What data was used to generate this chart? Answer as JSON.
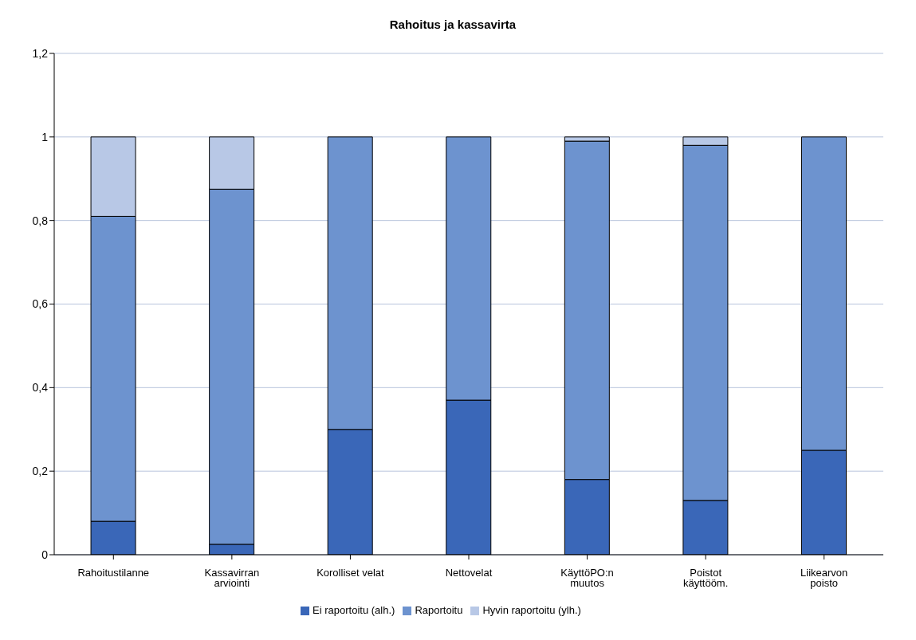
{
  "chart_data": {
    "type": "bar",
    "title": "Rahoitus ja kassavirta",
    "stacked": true,
    "categories": [
      "Rahoitustilanne",
      "Kassavirran arviointi",
      "Korolliset velat",
      "Nettovelat",
      "KäyttöPO:n muutos",
      "Poistot käyttööm.",
      "Liikearvon poisto"
    ],
    "series": [
      {
        "name": "Ei raportoitu (alh.)",
        "color": "#3a67b8",
        "values": [
          0.08,
          0.025,
          0.3,
          0.37,
          0.18,
          0.13,
          0.25
        ]
      },
      {
        "name": "Raportoitu",
        "color": "#6d93cf",
        "values": [
          0.73,
          0.85,
          0.7,
          0.63,
          0.81,
          0.85,
          0.75
        ]
      },
      {
        "name": "Hyvin raportoitu (ylh.)",
        "color": "#b8c8e6",
        "values": [
          0.19,
          0.125,
          0,
          0,
          0.01,
          0.02,
          0
        ]
      }
    ],
    "ylim": [
      0,
      1.2
    ],
    "yticks": [
      0,
      {
        "value": 0.2,
        "label": "0,2"
      },
      {
        "value": 0.4,
        "label": "0,4"
      },
      {
        "value": 0.6,
        "label": "0,6"
      },
      {
        "value": 0.8,
        "label": "0,8"
      },
      1,
      {
        "value": 1.2,
        "label": "1,2"
      }
    ],
    "grid": "y",
    "legend": "bottom"
  }
}
